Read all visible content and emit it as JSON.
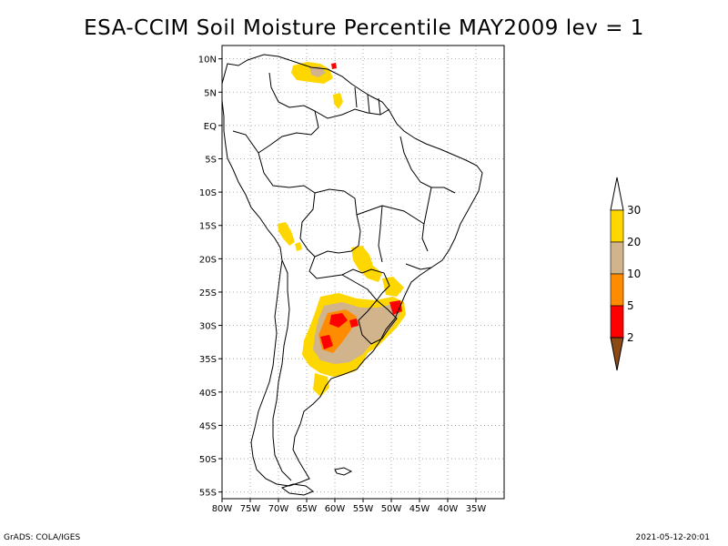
{
  "title": "ESA-CCIM Soil Moisture Percentile MAY2009 lev = 1",
  "footer_left": "GrADS: COLA/IGES",
  "footer_right": "2021-05-12-20:01",
  "map": {
    "lon_range": [
      -80,
      -30
    ],
    "lat_range": [
      -56,
      12
    ],
    "lon_ticks": [
      {
        "value": -80,
        "label": "80W"
      },
      {
        "value": -75,
        "label": "75W"
      },
      {
        "value": -70,
        "label": "70W"
      },
      {
        "value": -65,
        "label": "65W"
      },
      {
        "value": -60,
        "label": "60W"
      },
      {
        "value": -55,
        "label": "55W"
      },
      {
        "value": -50,
        "label": "50W"
      },
      {
        "value": -45,
        "label": "45W"
      },
      {
        "value": -40,
        "label": "40W"
      },
      {
        "value": -35,
        "label": "35W"
      }
    ],
    "lat_ticks": [
      {
        "value": 10,
        "label": "10N"
      },
      {
        "value": 5,
        "label": "5N"
      },
      {
        "value": 0,
        "label": "EQ"
      },
      {
        "value": -5,
        "label": "5S"
      },
      {
        "value": -10,
        "label": "10S"
      },
      {
        "value": -15,
        "label": "15S"
      },
      {
        "value": -20,
        "label": "20S"
      },
      {
        "value": -25,
        "label": "25S"
      },
      {
        "value": -30,
        "label": "30S"
      },
      {
        "value": -35,
        "label": "35S"
      },
      {
        "value": -40,
        "label": "40S"
      },
      {
        "value": -45,
        "label": "45S"
      },
      {
        "value": -50,
        "label": "50S"
      },
      {
        "value": -55,
        "label": "55S"
      }
    ],
    "grid": "dotted"
  },
  "legend": {
    "placement": "right",
    "levels": [
      {
        "label": "2",
        "color": "#8c4a14"
      },
      {
        "label": "5",
        "color": "#ff0000"
      },
      {
        "label": "10",
        "color": "#ff8c00"
      },
      {
        "label": "20",
        "color": "#d2b48c"
      },
      {
        "label": "30",
        "color": "#ffd700"
      }
    ],
    "top_color": "#ffffff"
  },
  "colors": {
    "lt2": "#8c4a14",
    "p2_5": "#ff0000",
    "p5_10": "#ff8c00",
    "p10_20": "#d2b48c",
    "p20_30": "#ffd700"
  }
}
